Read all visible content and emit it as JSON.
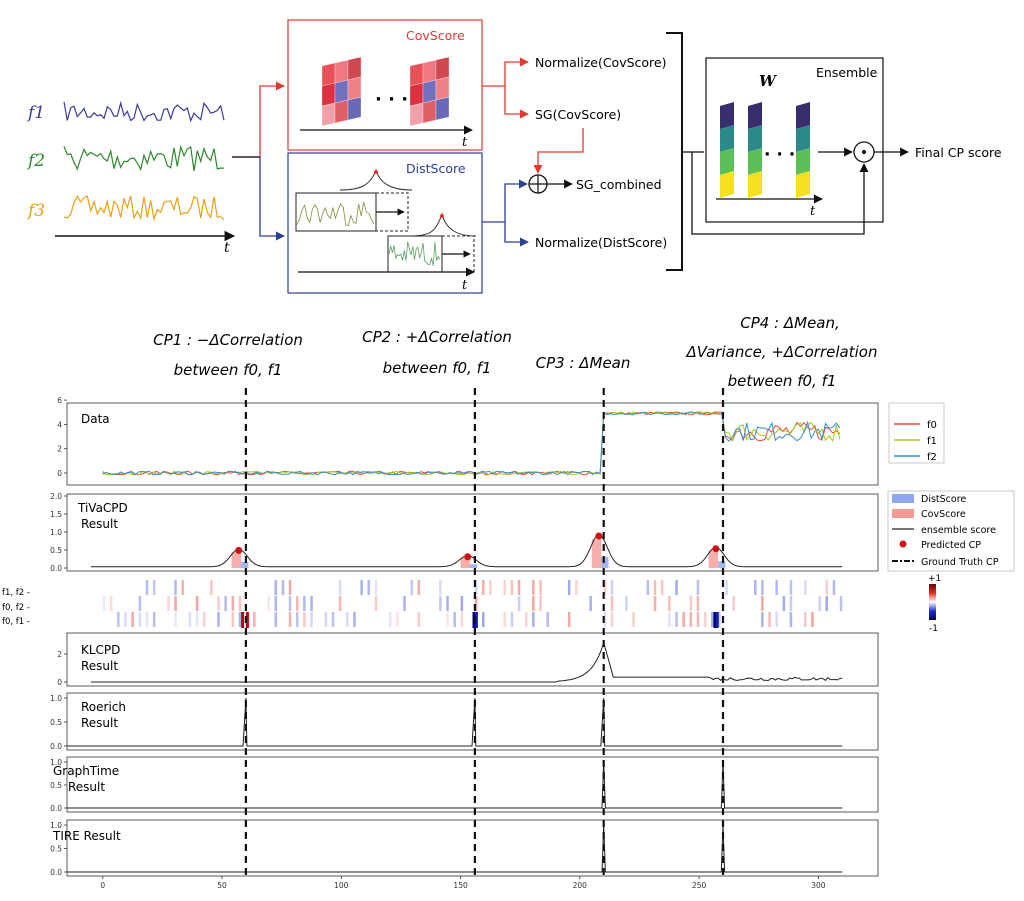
{
  "pipeline": {
    "features": [
      "f1",
      "f2",
      "f3"
    ],
    "feature_colors": [
      "#3b3b9b",
      "#2a8a2a",
      "#e8a018"
    ],
    "time_label": "t",
    "covscore_title": "CovScore",
    "distscore_title": "DistScore",
    "ellipsis": "· · ·",
    "normalize_cov": "Normalize(CovScore)",
    "sg_cov": "SG(CovScore)",
    "sg_combined": "SG_combined",
    "normalize_dist": "Normalize(DistScore)",
    "ensemble_title": "Ensemble",
    "weight_symbol": "W",
    "final": "Final CP score",
    "cov_color": "#e03a2f",
    "dist_color": "#2b3f95"
  },
  "annotations": {
    "cp1": [
      "CP1 : −ΔCorrelation",
      "between f0, f1"
    ],
    "cp2": [
      "CP2 : +ΔCorrelation",
      "between f0, f1"
    ],
    "cp3": [
      "CP3 : ΔMean"
    ],
    "cp4": [
      "CP4 : ΔMean,",
      "ΔVariance, +ΔCorrelation",
      "between f0, f1"
    ]
  },
  "panels": {
    "data": "Data",
    "tivacpd": [
      "TiVaCPD",
      "Result"
    ],
    "klcpd": [
      "KLCPD",
      "Result"
    ],
    "roerich": [
      "Roerich",
      "Result"
    ],
    "graphtime": [
      "GraphTime",
      "Result"
    ],
    "tire": "TIRE Result"
  },
  "legends": {
    "data": [
      "f0",
      "f1",
      "f2"
    ],
    "data_colors": [
      "#e8473d",
      "#a8c618",
      "#3a8fc8"
    ],
    "tivacpd": [
      "DistScore",
      "CovScore",
      "ensemble score",
      "Predicted CP",
      "Ground Truth CP"
    ]
  },
  "heatmap": {
    "rows": [
      "f1, f2 -",
      "f0, f2 -",
      "f0, f1 -"
    ],
    "colorbar": [
      "+1",
      "-1"
    ]
  },
  "chart_data": {
    "type": "line",
    "x_ticks": [
      "0",
      "50",
      "100",
      "150",
      "200",
      "250",
      "300"
    ],
    "xlim": [
      -15,
      325
    ],
    "ground_truth_cp": [
      60,
      156,
      210,
      260
    ],
    "predicted_cp": [
      57,
      153,
      208,
      257
    ],
    "panels": [
      {
        "name": "Data",
        "ylim": [
          -0.5,
          6.2
        ],
        "y_ticks": [
          "0",
          "2",
          "4",
          "6"
        ]
      },
      {
        "name": "TiVaCPD Result",
        "ylim": [
          0,
          2
        ],
        "y_ticks": [
          "0.0",
          "0.5",
          "1.0",
          "1.5",
          "2.0"
        ],
        "ensemble_peaks": [
          {
            "x": 57,
            "y": 0.55
          },
          {
            "x": 153,
            "y": 0.35
          },
          {
            "x": 208,
            "y": 1.0
          },
          {
            "x": 257,
            "y": 0.6
          }
        ]
      },
      {
        "name": "KLCPD Result",
        "ylim": [
          -0.2,
          3
        ],
        "y_ticks": [
          "0",
          "2"
        ]
      },
      {
        "name": "Roerich Result",
        "ylim": [
          0,
          1.05
        ],
        "y_ticks": [
          "0.0",
          "0.5",
          "1.0"
        ]
      },
      {
        "name": "GraphTime Result",
        "ylim": [
          0,
          1.05
        ],
        "y_ticks": [
          "0.0",
          "0.5",
          "1.0"
        ]
      },
      {
        "name": "TIRE Result",
        "ylim": [
          0,
          1.05
        ],
        "y_ticks": [
          "0.0",
          "0.5",
          "1.0"
        ]
      }
    ]
  }
}
